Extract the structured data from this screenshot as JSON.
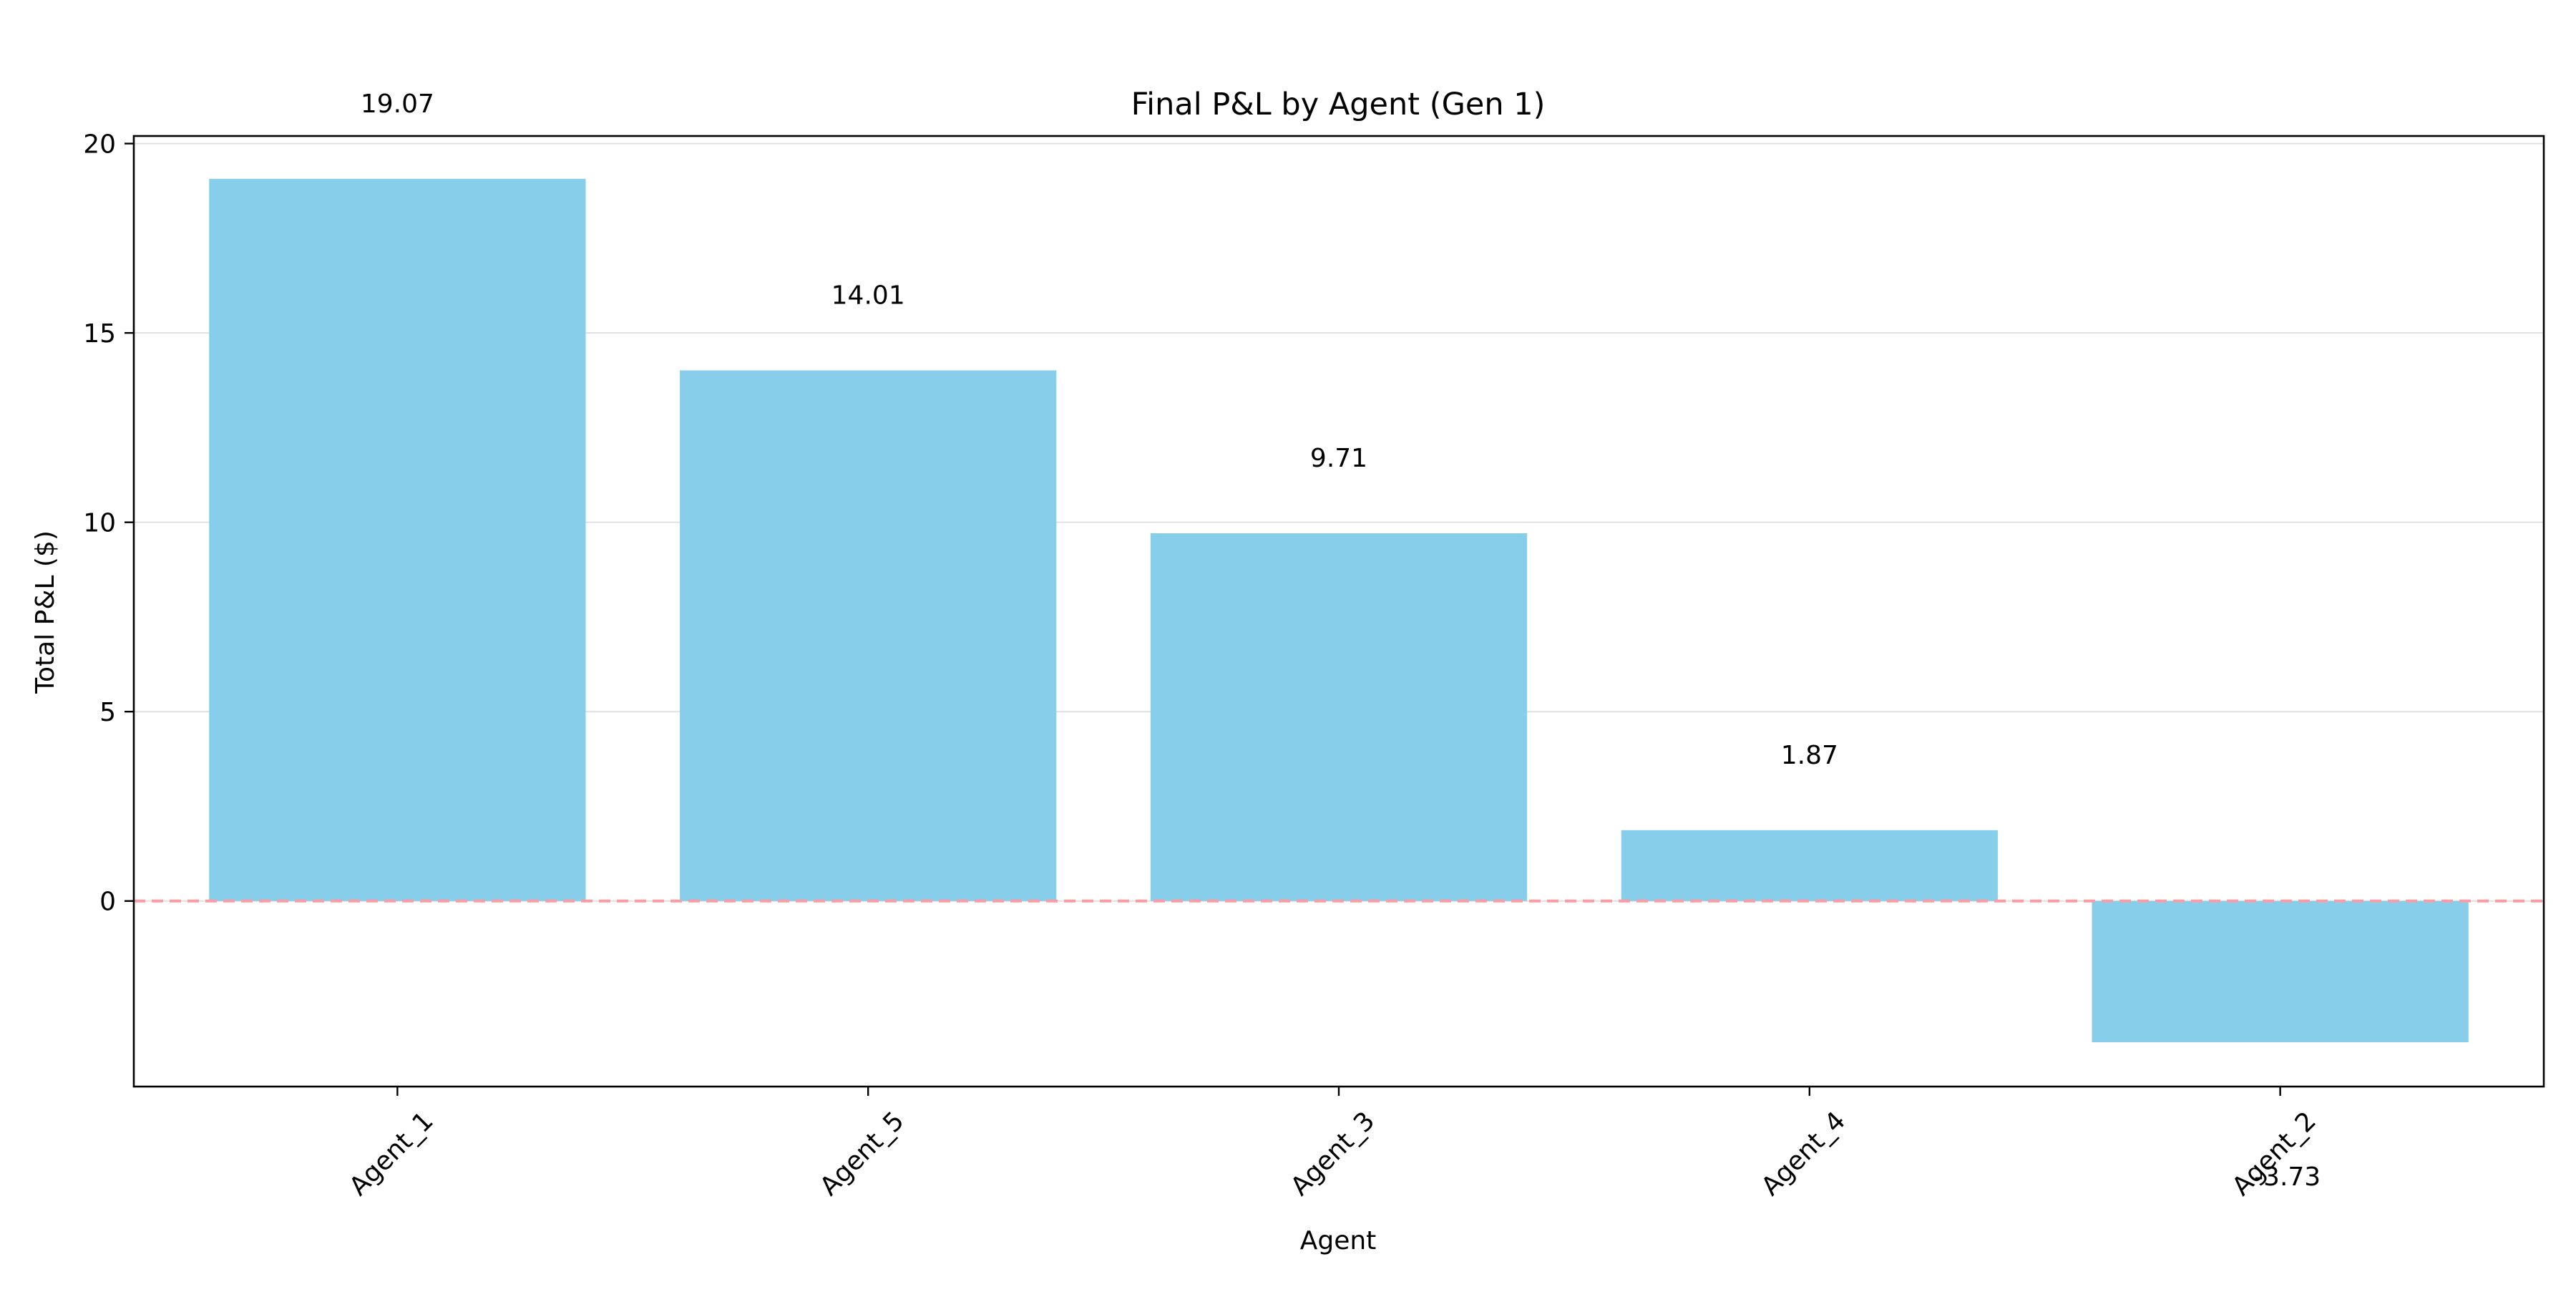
{
  "chart_data": {
    "type": "bar",
    "title": "Final P&L by Agent (Gen 1)",
    "xlabel": "Agent",
    "ylabel": "Total P&L ($)",
    "categories": [
      "Agent_1",
      "Agent_5",
      "Agent_3",
      "Agent_4",
      "Agent_2"
    ],
    "values": [
      19.07,
      14.01,
      9.71,
      1.87,
      -3.73
    ],
    "value_labels": [
      "19.07",
      "14.01",
      "9.71",
      "1.87",
      "-3.73"
    ],
    "ylim": [
      -4.9,
      20.2
    ],
    "yticks": [
      0,
      5,
      10,
      15,
      20
    ],
    "grid": "y-only",
    "x_tick_rotation_deg": 45,
    "legend": "none",
    "zero_line": {
      "value": 0,
      "style": "dashed"
    },
    "colors": {
      "bar": "#87CEEB",
      "zero_line": "#FF9AA2",
      "grid": "#E0E0E0",
      "axes": "#000000",
      "text": "#000000"
    }
  }
}
